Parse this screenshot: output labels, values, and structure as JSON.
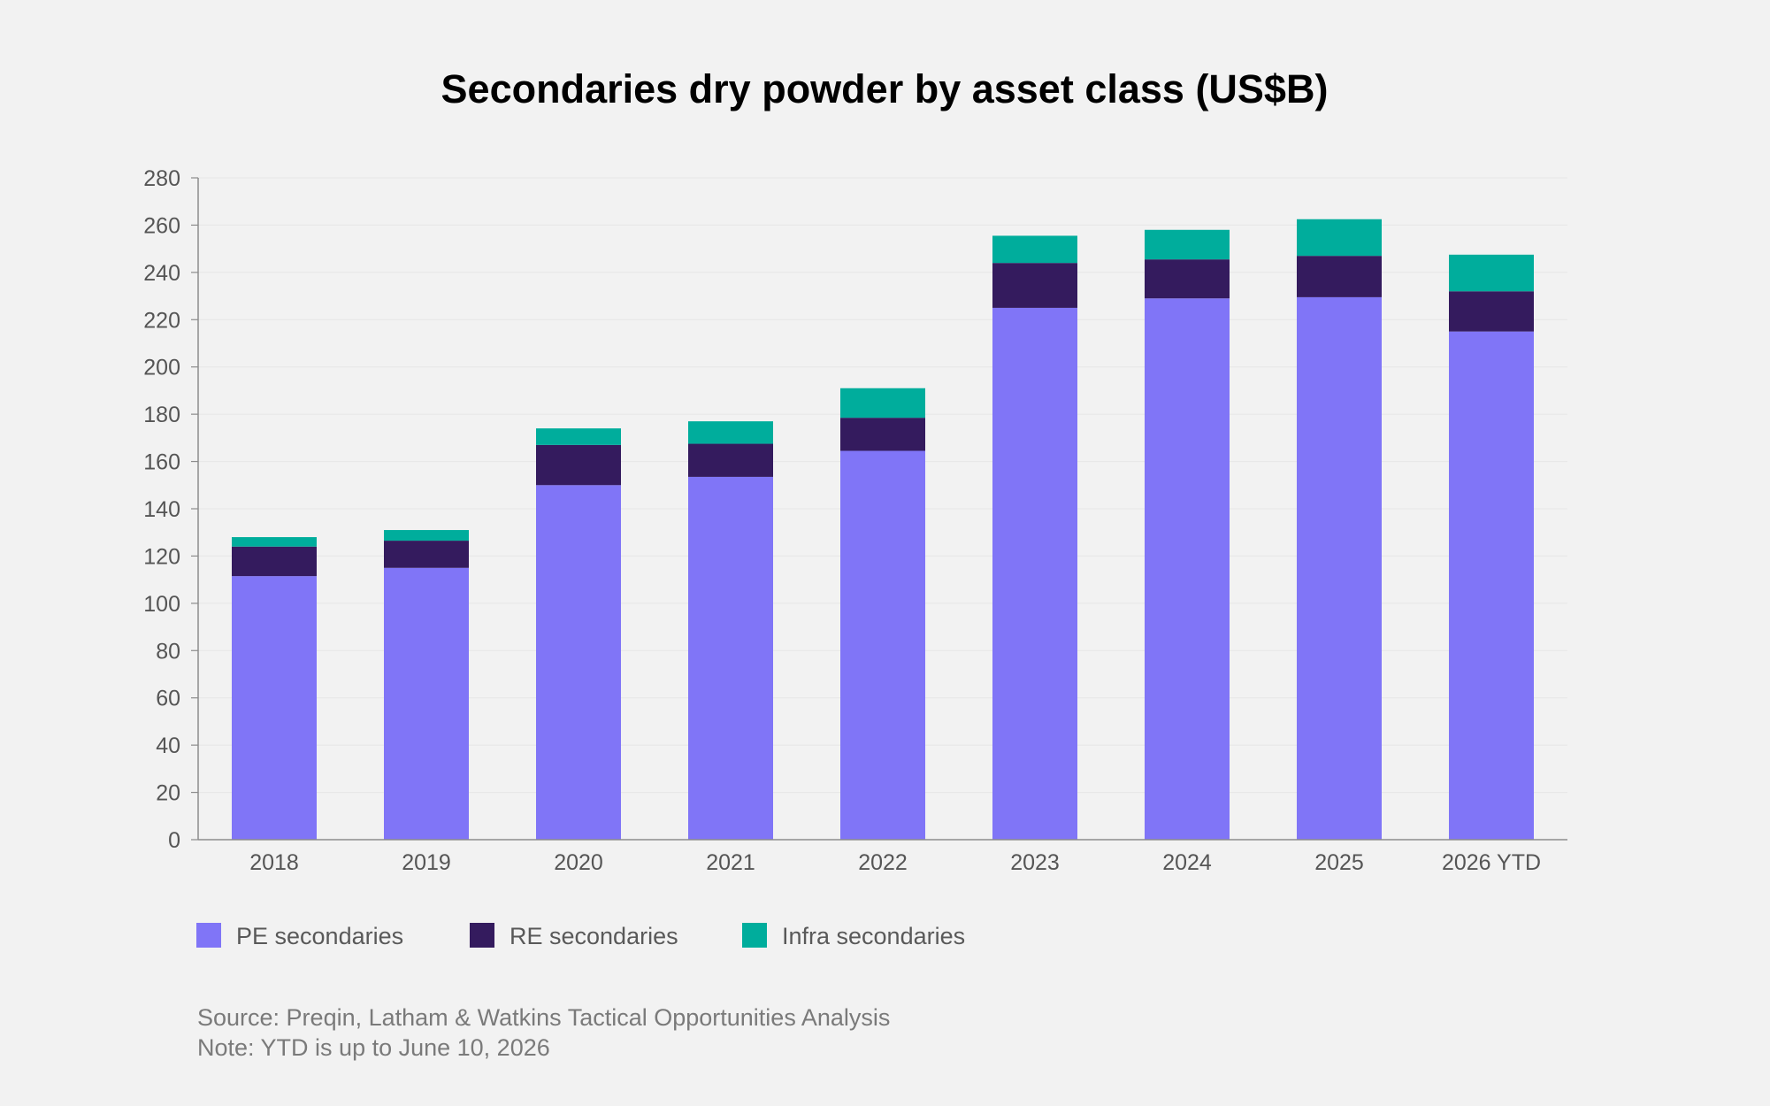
{
  "chart_data": {
    "type": "bar",
    "stacked": true,
    "title": "Secondaries dry powder by asset class (US$B)",
    "xlabel": "",
    "ylabel": "",
    "categories": [
      "2018",
      "2019",
      "2020",
      "2021",
      "2022",
      "2023",
      "2024",
      "2025",
      "2026 YTD"
    ],
    "series": [
      {
        "name": "PE secondaries",
        "color": "#8075f7",
        "values": [
          111.5,
          115,
          150,
          153.5,
          164.5,
          225,
          229,
          229.5,
          215
        ]
      },
      {
        "name": "RE secondaries",
        "color": "#341b5e",
        "values": [
          12.5,
          11.5,
          17,
          14,
          14,
          19,
          16.5,
          17.5,
          17
        ]
      },
      {
        "name": "Infra secondaries",
        "color": "#00ad9c",
        "values": [
          4,
          4.5,
          7,
          9.5,
          12.5,
          11.5,
          12.5,
          15.5,
          15.5
        ]
      }
    ],
    "ylim": [
      0,
      280
    ],
    "yticks": [
      0,
      20,
      40,
      60,
      80,
      100,
      120,
      140,
      160,
      180,
      200,
      220,
      240,
      260,
      280
    ],
    "grid": true,
    "legend_position": "bottom-left"
  },
  "notes": {
    "source": "Source: Preqin, Latham & Watkins Tactical Opportunities Analysis",
    "note": "Note: YTD is up to June 10, 2026"
  }
}
